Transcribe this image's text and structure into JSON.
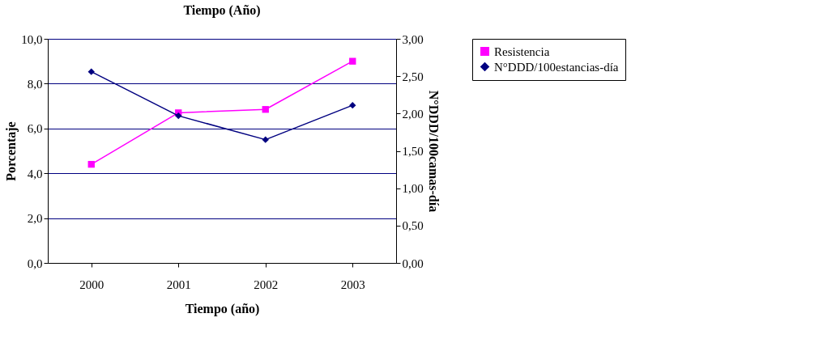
{
  "chart_data": {
    "type": "line",
    "title": "Tiempo (Año)",
    "xlabel": "Tiempo (año)",
    "ylabel": "Porcentaje",
    "y2label": "N°DDD/100camas-día",
    "categories": [
      "2000",
      "2001",
      "2002",
      "2003"
    ],
    "series": [
      {
        "name": "Resistencia",
        "color": "#ff00ff",
        "marker": "square",
        "values": [
          4.4,
          6.7,
          6.85,
          9.0
        ]
      },
      {
        "name": "N°DDD/100estancias-día",
        "color": "#000080",
        "marker": "diamond",
        "axis": "y2",
        "values": [
          2.56,
          1.97,
          1.65,
          2.11
        ]
      }
    ],
    "ylim": [
      0,
      10
    ],
    "yticks": [
      {
        "value": 0,
        "label": "0,0"
      },
      {
        "value": 2,
        "label": "2,0"
      },
      {
        "value": 4,
        "label": "4,0"
      },
      {
        "value": 6,
        "label": "6,0"
      },
      {
        "value": 8,
        "label": "8,0"
      },
      {
        "value": 10,
        "label": "10,0"
      }
    ],
    "y2lim": [
      0,
      3
    ],
    "y2ticks": [
      {
        "value": 0,
        "label": "0,00"
      },
      {
        "value": 0.5,
        "label": "0,50"
      },
      {
        "value": 1,
        "label": "1,00"
      },
      {
        "value": 1.5,
        "label": "1,50"
      },
      {
        "value": 2,
        "label": "2,00"
      },
      {
        "value": 2.5,
        "label": "2,50"
      },
      {
        "value": 3,
        "label": "3,00"
      }
    ],
    "grid": "y",
    "legend": "right",
    "line_style": "solid"
  }
}
